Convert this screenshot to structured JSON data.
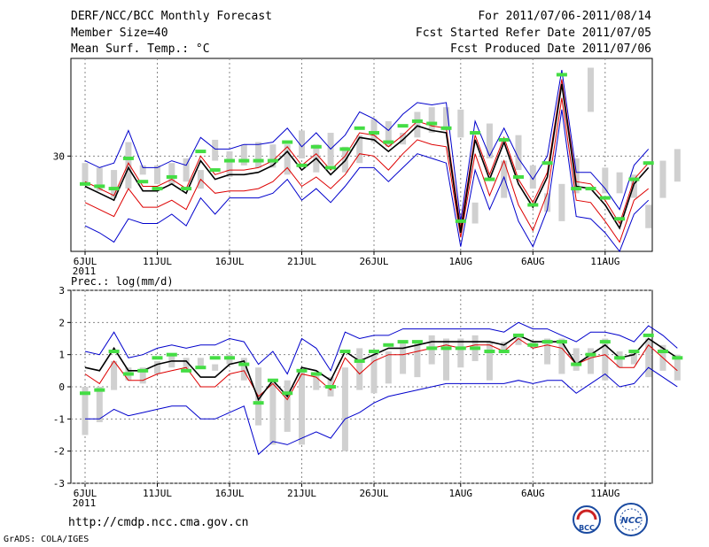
{
  "header": {
    "title": "DERF/NCC/BCC Monthly Forecast",
    "member_size": "Member Size=40",
    "variable": "Mean Surf. Temp.: °C",
    "period": "For 2011/07/06-2011/08/14",
    "started": "Fcst Started Refer Date 2011/07/05",
    "produced": "Fcst Produced Date 2011/07/06"
  },
  "footer": {
    "url": "http://cmdp.ncc.cma.gov.cn",
    "credit": "GrADS: COLA/IGES",
    "logo_bcc": "BCC",
    "logo_ncc": "NCC"
  },
  "colors": {
    "spread": "#d0d0d0",
    "upper": "#0000cc",
    "lower": "#0000cc",
    "red": "#dd0000",
    "mean": "#000000",
    "marker": "#44dd44",
    "grid": "#888888"
  },
  "chart_data": [
    {
      "type": "line",
      "name": "temperature",
      "title": "Mean Surf. Temp.: °C",
      "x_ticks": [
        "6JUL",
        "11JUL",
        "16JUL",
        "21JUL",
        "26JUL",
        "1AUG",
        "6AUG",
        "11AUG"
      ],
      "year_label": "2011",
      "y_ticks": [
        30
      ],
      "ylim": [
        25.9,
        34.2
      ],
      "grid": true,
      "spread_low": [
        28.8,
        28.5,
        28.2,
        28.6,
        29.2,
        28.8,
        28.8,
        28.9,
        28.6,
        29.8,
        29.1,
        29.6,
        29.5,
        29.5,
        29.2,
        29.9,
        29.3,
        29.6,
        29.3,
        29.7,
        30.6,
        30.4,
        30.5,
        30.8,
        31.0,
        31.1,
        30.8,
        27.1,
        29.9,
        28.2,
        29.4,
        28.6,
        27.6,
        27.2,
        28.4,
        31.9,
        28.4,
        28.4,
        28.2,
        26.9,
        28.2,
        28.9
      ],
      "spread_high": [
        29.7,
        29.5,
        29.4,
        30.6,
        29.6,
        29.6,
        29.7,
        29.9,
        29.4,
        30.7,
        30.2,
        30.5,
        30.6,
        30.5,
        30.5,
        31.1,
        30.5,
        31.0,
        30.4,
        30.9,
        31.6,
        31.5,
        31.0,
        31.9,
        32.1,
        32.1,
        32.0,
        28.0,
        31.4,
        29.8,
        30.9,
        29.6,
        28.4,
        28.8,
        29.9,
        33.8,
        29.5,
        29.3,
        29.2,
        27.9,
        29.8,
        30.3
      ],
      "upper": [
        29.8,
        29.5,
        29.7,
        31.1,
        29.5,
        29.5,
        29.8,
        29.6,
        30.8,
        30.3,
        30.3,
        30.5,
        30.5,
        30.6,
        31.2,
        30.4,
        31.0,
        30.3,
        30.9,
        31.9,
        31.6,
        31.1,
        31.8,
        32.3,
        32.2,
        32.3,
        27.2,
        31.5,
        30.0,
        31.2,
        29.9,
        29.0,
        30.0,
        33.7,
        29.3,
        29.3,
        28.6,
        27.7,
        29.6,
        30.3
      ],
      "red": [
        28.9,
        28.6,
        28.3,
        29.7,
        28.7,
        28.7,
        29.0,
        28.6,
        30.0,
        29.2,
        29.4,
        29.4,
        29.5,
        29.8,
        30.4,
        29.6,
        30.1,
        29.4,
        30.0,
        31.0,
        30.9,
        30.4,
        30.9,
        31.5,
        31.3,
        31.2,
        26.9,
        30.9,
        29.2,
        30.8,
        29.0,
        28.0,
        29.3,
        33.3,
        28.9,
        28.8,
        28.1,
        27.1,
        29.0,
        29.7
      ],
      "mean": [
        28.7,
        28.4,
        28.1,
        29.5,
        28.5,
        28.5,
        28.8,
        28.4,
        29.8,
        29.0,
        29.2,
        29.2,
        29.3,
        29.6,
        30.2,
        29.4,
        29.9,
        29.2,
        29.8,
        30.8,
        30.7,
        30.2,
        30.7,
        31.3,
        31.1,
        31.0,
        26.7,
        30.7,
        29.0,
        30.6,
        28.8,
        27.8,
        29.1,
        33.1,
        28.7,
        28.6,
        27.9,
        26.9,
        28.8,
        29.5
      ],
      "lower": [
        28.0,
        27.7,
        27.4,
        28.6,
        27.8,
        27.8,
        28.1,
        27.7,
        29.0,
        28.4,
        28.5,
        28.5,
        28.6,
        28.9,
        29.5,
        28.7,
        29.1,
        28.6,
        29.2,
        30.1,
        30.0,
        29.4,
        30.1,
        30.7,
        30.5,
        30.4,
        26.5,
        30.1,
        28.3,
        29.8,
        27.9,
        26.8,
        28.4,
        32.5,
        28.1,
        28.0,
        27.2,
        26.3,
        28.1,
        28.6
      ],
      "lower_blue": [
        27.0,
        26.7,
        26.3,
        27.3,
        27.1,
        27.1,
        27.5,
        27.0,
        28.2,
        27.5,
        28.2,
        28.2,
        28.2,
        28.4,
        29.0,
        28.1,
        28.6,
        28.0,
        28.7,
        29.5,
        29.5,
        28.9,
        29.5,
        30.1,
        29.9,
        29.7,
        26.1,
        29.4,
        27.7,
        29.1,
        27.2,
        26.1,
        27.7,
        32.0,
        27.4,
        27.3,
        26.7,
        25.9,
        27.5,
        28.1
      ],
      "markers": [
        28.8,
        28.7,
        28.6,
        29.9,
        28.9,
        28.6,
        29.1,
        28.6,
        30.2,
        29.4,
        29.8,
        29.8,
        29.8,
        29.8,
        30.6,
        29.6,
        30.4,
        29.5,
        30.3,
        31.2,
        31.0,
        30.6,
        31.3,
        31.5,
        31.4,
        31.2,
        27.2,
        31.0,
        29.0,
        30.7,
        29.1,
        27.9,
        29.7,
        33.5,
        28.6,
        28.6,
        28.2,
        27.3,
        29.0,
        29.7
      ]
    },
    {
      "type": "line",
      "name": "precipitation",
      "title": "Prec.: log(mm/d)",
      "x_ticks": [
        "6JUL",
        "11JUL",
        "16JUL",
        "21JUL",
        "26JUL",
        "1AUG",
        "6AUG",
        "11AUG"
      ],
      "year_label": "2011",
      "y_ticks": [
        -3,
        -2,
        -1,
        0,
        1,
        2,
        3
      ],
      "ylim": [
        -3,
        3
      ],
      "grid": true,
      "spread_low": [
        -1.5,
        -1.1,
        -0.1,
        0.2,
        0.1,
        0.4,
        0.6,
        0.5,
        0.6,
        0.5,
        0.7,
        0.2,
        -1.2,
        -1.8,
        -1.4,
        -1.8,
        -0.1,
        -0.3,
        -2.0,
        -0.1,
        -0.2,
        0.1,
        0.4,
        0.3,
        0.7,
        0.2,
        0.6,
        0.8,
        0.2,
        1.1,
        1.3,
        1.2,
        0.7,
        0.4,
        0.5,
        0.4,
        0.2,
        0.6,
        0.7,
        0.3,
        0.5,
        0.2
      ],
      "spread_high": [
        0.0,
        0.0,
        0.8,
        0.6,
        0.6,
        0.8,
        1.0,
        0.9,
        0.9,
        0.7,
        1.0,
        0.9,
        0.6,
        0.2,
        0.2,
        0.5,
        0.4,
        0.3,
        0.6,
        1.2,
        1.0,
        1.1,
        1.4,
        1.4,
        1.6,
        1.5,
        1.5,
        1.6,
        1.4,
        1.4,
        1.6,
        1.4,
        1.5,
        1.5,
        1.2,
        1.2,
        1.5,
        1.1,
        1.1,
        1.5,
        1.3,
        1.0
      ],
      "upper": [
        1.1,
        1.0,
        1.7,
        0.9,
        1.0,
        1.2,
        1.3,
        1.2,
        1.3,
        1.3,
        1.5,
        1.4,
        0.7,
        1.1,
        0.4,
        1.5,
        1.2,
        0.5,
        1.7,
        1.5,
        1.6,
        1.6,
        1.8,
        1.8,
        1.8,
        1.8,
        1.8,
        1.8,
        1.8,
        1.7,
        2.0,
        1.8,
        1.8,
        1.6,
        1.4,
        1.7,
        1.7,
        1.6,
        1.4,
        1.9,
        1.6,
        1.2
      ],
      "red": [
        0.4,
        0.1,
        0.8,
        0.2,
        0.2,
        0.4,
        0.5,
        0.6,
        0.0,
        0.0,
        0.4,
        0.5,
        -0.3,
        0.1,
        -0.4,
        0.4,
        0.3,
        -0.1,
        0.9,
        0.4,
        0.8,
        1.0,
        1.0,
        1.1,
        1.2,
        1.3,
        1.2,
        1.3,
        1.3,
        1.1,
        1.5,
        1.2,
        1.3,
        1.2,
        0.7,
        0.9,
        1.0,
        0.6,
        0.6,
        1.3,
        0.9,
        0.5
      ],
      "mean": [
        0.6,
        0.5,
        1.2,
        0.5,
        0.5,
        0.7,
        0.8,
        0.8,
        0.3,
        0.3,
        0.7,
        0.8,
        -0.4,
        0.2,
        -0.3,
        0.6,
        0.5,
        0.2,
        1.1,
        0.8,
        1.0,
        1.2,
        1.2,
        1.3,
        1.4,
        1.4,
        1.4,
        1.4,
        1.4,
        1.3,
        1.6,
        1.4,
        1.4,
        1.4,
        0.7,
        1.0,
        1.3,
        0.9,
        1.0,
        1.5,
        1.2,
        0.9
      ],
      "lower": [
        -1.0,
        -1.0,
        -0.7,
        -0.9,
        -0.8,
        -0.7,
        -0.6,
        -0.6,
        -1.0,
        -1.0,
        -0.8,
        -0.6,
        -2.1,
        -1.7,
        -1.8,
        -1.6,
        -1.4,
        -1.6,
        -1.0,
        -0.8,
        -0.5,
        -0.3,
        -0.2,
        -0.1,
        0.0,
        0.1,
        0.1,
        0.1,
        0.1,
        0.1,
        0.2,
        0.1,
        0.2,
        0.2,
        -0.2,
        0.1,
        0.4,
        0.0,
        0.1,
        0.6,
        0.3,
        0.0
      ],
      "markers": [
        -0.2,
        -0.1,
        1.1,
        0.4,
        0.5,
        0.9,
        1.0,
        0.5,
        0.6,
        0.9,
        0.9,
        0.7,
        -0.5,
        0.2,
        -0.2,
        0.5,
        0.4,
        0.0,
        1.1,
        0.8,
        1.1,
        1.3,
        1.4,
        1.4,
        1.2,
        1.2,
        1.2,
        1.2,
        1.1,
        1.1,
        1.6,
        1.3,
        1.4,
        1.4,
        0.7,
        1.0,
        1.4,
        0.9,
        1.1,
        1.6,
        1.1,
        0.9
      ]
    }
  ]
}
